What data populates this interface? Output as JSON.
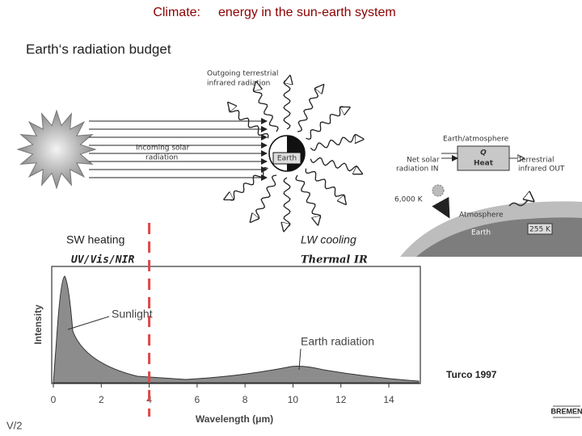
{
  "header": {
    "label": "Climate:",
    "title": "energy in the sun-earth system"
  },
  "subtitle": "Earth‘s radiation budget",
  "diagram": {
    "outgoing": [
      "Outgoing terrestrial",
      "infrared radiation"
    ],
    "incoming": [
      "Incoming solar",
      "radiation"
    ],
    "earth": "Earth",
    "box_title": "Earth/atmosphere",
    "box_q": "Q",
    "box_heat": "Heat",
    "net_in": [
      "Net solar",
      "radiation IN"
    ],
    "terr_out": [
      "Terrestrial",
      "infrared  OUT"
    ],
    "sun_temp": "6,000 K",
    "atmosphere": "Atmosphere",
    "earth_small": "Earth",
    "earth_temp": "255 K"
  },
  "spectrum": {
    "sw_label": "SW heating",
    "sw_band": "UV/Vis/NIR",
    "lw_label": "LW cooling",
    "lw_band": "Thermal IR",
    "y_label": "Intensity",
    "x_label": "Wavelength (μm)",
    "xticks": [
      0,
      2,
      4,
      6,
      8,
      10,
      12,
      14
    ],
    "divider": 4,
    "sunlight": "Sunlight",
    "earth_radiation": "Earth radiation",
    "source": "Turco 1997"
  },
  "footer": {
    "page": "V/2",
    "logo": "BREMEN"
  }
}
